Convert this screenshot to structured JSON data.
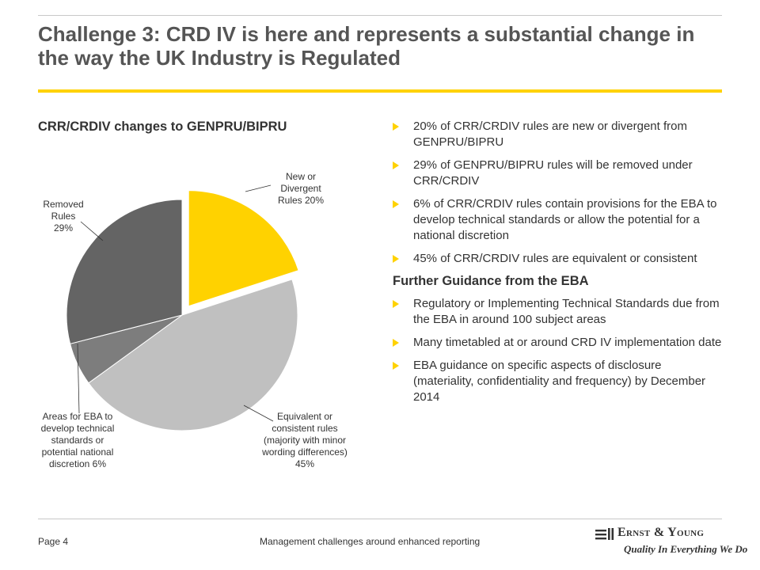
{
  "slide": {
    "title": "Challenge 3: CRD IV is here and represents a substantial change in the way the UK Industry is Regulated",
    "chart_heading": "CRR/CRDIV changes to GENPRU/BIPRU"
  },
  "chart_data": {
    "type": "pie",
    "title": "CRR/CRDIV changes to GENPRU/BIPRU",
    "slices": [
      {
        "label_lines": [
          "New or",
          "Divergent",
          "Rules 20%"
        ],
        "value": 20,
        "color": "#ffd200",
        "exploded": true
      },
      {
        "label_lines": [
          "Equivalent or",
          "consistent rules",
          "(majority with minor",
          "wording differences)",
          "45%"
        ],
        "value": 45,
        "color": "#c0c0c0",
        "exploded": false
      },
      {
        "label_lines": [
          "Areas for EBA to",
          "develop technical",
          "standards or",
          "potential national",
          "discretion 6%"
        ],
        "value": 6,
        "color": "#7d7d7d",
        "exploded": false
      },
      {
        "label_lines": [
          "Removed",
          "Rules",
          "29%"
        ],
        "value": 29,
        "color": "#646464",
        "exploded": false
      }
    ]
  },
  "bullets": [
    "20% of CRR/CRDIV rules are new or divergent from GENPRU/BIPRU",
    "29% of GENPRU/BIPRU rules will be removed under CRR/CRDIV",
    "6% of CRR/CRDIV rules contain provisions for the EBA to develop technical standards or allow the potential for a national discretion",
    "45% of CRR/CRDIV rules are equivalent or consistent"
  ],
  "subheading": "Further Guidance from the EBA",
  "guidance_bullets": [
    "Regulatory or Implementing Technical Standards due from the EBA in around 100 subject areas",
    "Many timetabled at or around CRD IV implementation date",
    "EBA guidance on specific aspects of disclosure (materiality, confidentiality and frequency) by December 2014"
  ],
  "footer": {
    "page": "Page 4",
    "text": "Management challenges around enhanced reporting",
    "logo_name": "Ernst & Young",
    "logo_tagline": "Quality In Everything We Do"
  }
}
